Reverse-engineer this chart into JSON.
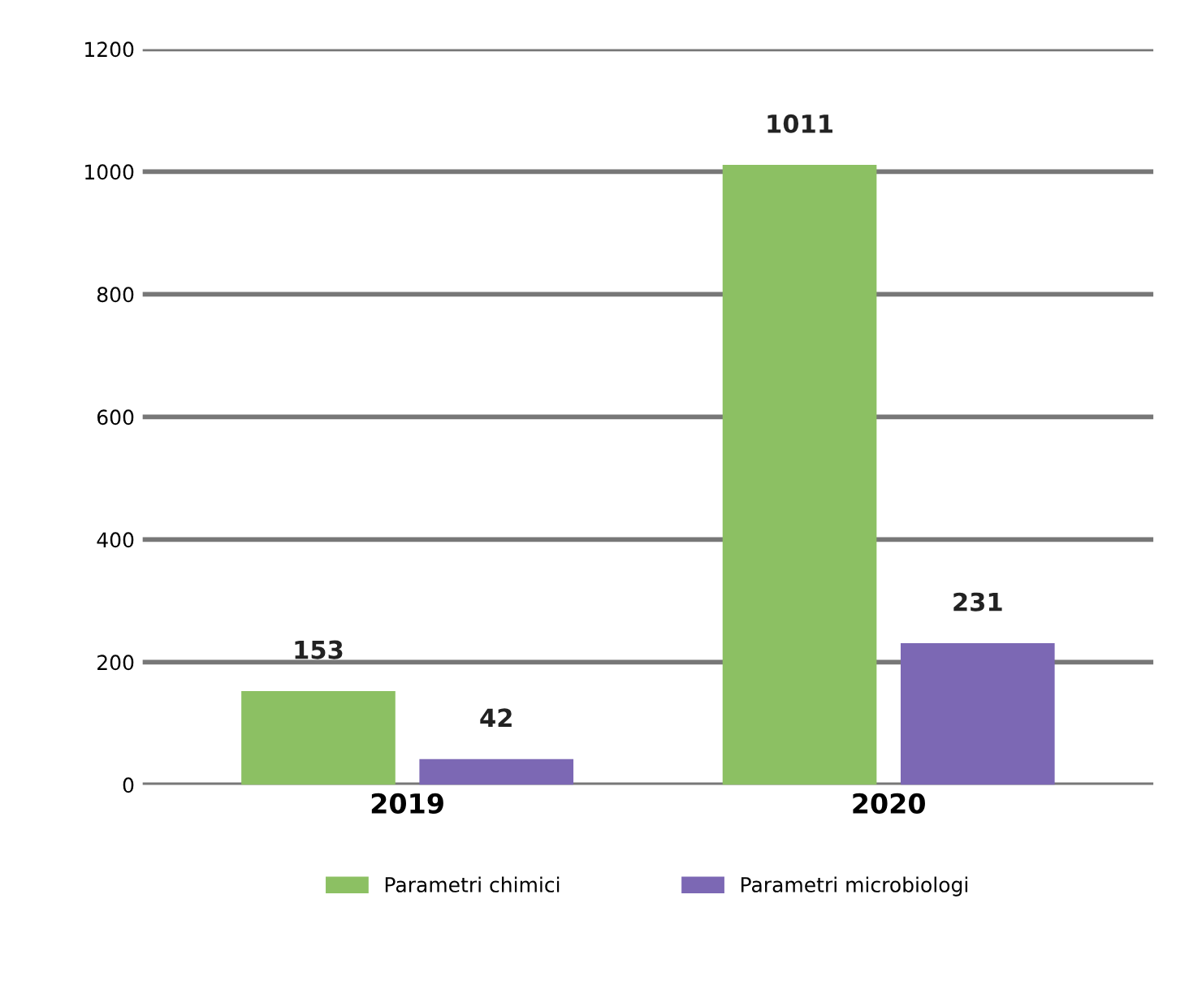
{
  "chart_data": {
    "type": "bar",
    "categories": [
      "2019",
      "2020"
    ],
    "series": [
      {
        "name": "Parametri chimici",
        "color": "#8cc063",
        "values": [
          153,
          1011
        ]
      },
      {
        "name": "Parametri microbiologi",
        "color": "#7c68b4",
        "values": [
          42,
          231
        ]
      }
    ],
    "ylim": [
      0,
      1200
    ],
    "yticks": [
      0,
      200,
      400,
      600,
      800,
      1000,
      1200
    ],
    "grid": "y",
    "data_labels": true,
    "legend": "bottom"
  }
}
